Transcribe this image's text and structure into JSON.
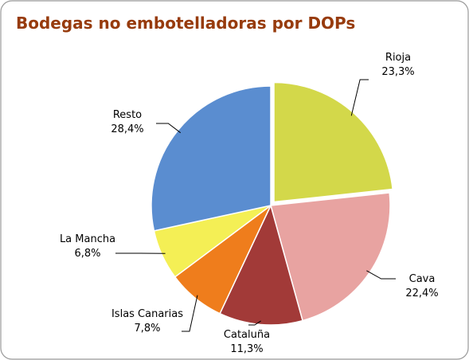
{
  "chart_data": {
    "type": "pie",
    "title": "Bodegas no embotelladoras por DOPs",
    "categories": [
      "Rioja",
      "Cava",
      "Cataluña",
      "Islas Canarias",
      "La Mancha",
      "Resto"
    ],
    "values": [
      23.3,
      22.4,
      11.3,
      7.8,
      6.8,
      28.4
    ],
    "value_labels": [
      "23,3%",
      "22,4%",
      "11,3%",
      "7,8%",
      "6,8%",
      "28,4%"
    ],
    "colors": [
      "#d3d84a",
      "#e8a3a1",
      "#a23a38",
      "#ef7d1c",
      "#f4ef55",
      "#5a8dd0"
    ]
  }
}
